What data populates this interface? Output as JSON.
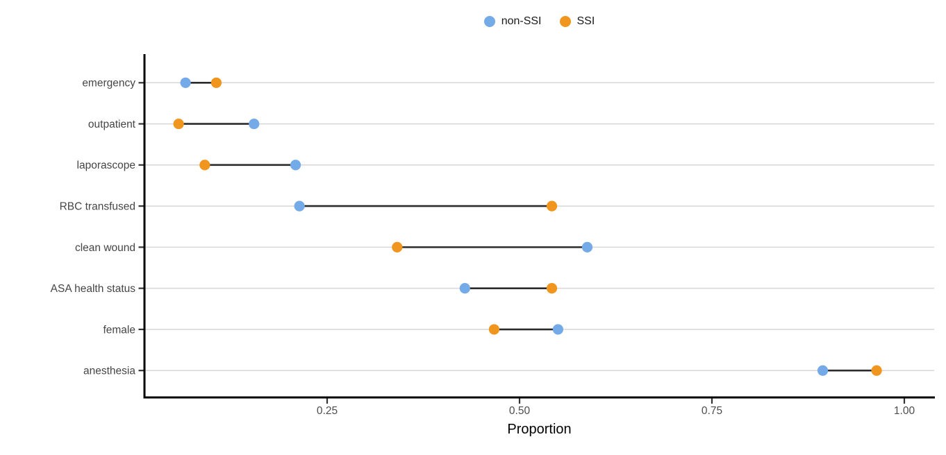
{
  "chart_data": {
    "type": "dumbbell",
    "orientation": "horizontal",
    "title": "",
    "xlabel": "Proportion",
    "ylabel": "",
    "x_domain": [
      0.0,
      1.04
    ],
    "x_ticks": [
      0.25,
      0.5,
      0.75,
      1.0
    ],
    "x_tick_labels": [
      "0.25",
      "0.50",
      "0.75",
      "1.00"
    ],
    "categories": [
      "emergency",
      "outpatient",
      "laporascope",
      "RBC transfused",
      "clean wound",
      "ASA health status",
      "female",
      "anesthesia"
    ],
    "series": [
      {
        "name": "non-SSI",
        "color": "#74AAE7",
        "values": [
          0.066,
          0.155,
          0.209,
          0.214,
          0.588,
          0.429,
          0.55,
          0.894
        ]
      },
      {
        "name": "SSI",
        "color": "#F0961E",
        "values": [
          0.106,
          0.057,
          0.091,
          0.542,
          0.341,
          0.542,
          0.467,
          0.964
        ]
      }
    ],
    "legend_position": "top-center",
    "grid": "horizontal-only",
    "colors": {
      "grid": "#D6D6D6",
      "segment": "#2B2B2B",
      "axis": "#000000",
      "x_tick_label": "#4D4D4D",
      "category_label": "#454545",
      "axis_title": "#000000",
      "background": "#FFFFFF"
    }
  }
}
